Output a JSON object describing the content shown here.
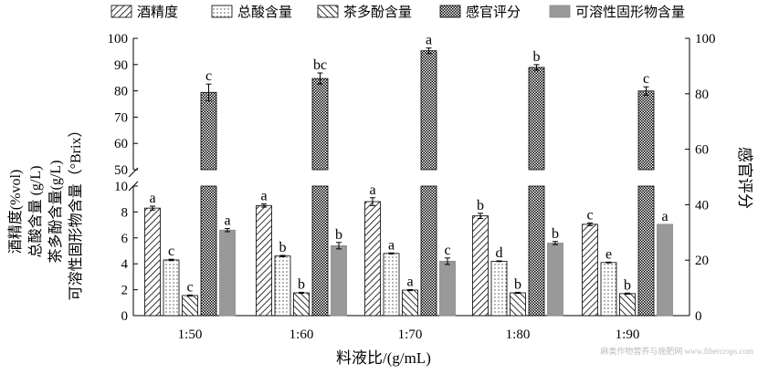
{
  "chart_data": {
    "type": "bar",
    "xlabel": "料液比/(g/mL)",
    "ylabel_left": [
      "酒精度(%vol)",
      "总酸含量 (g/L)",
      "茶多酚含量(g/L)",
      "可溶性固形物含量（°Brix）"
    ],
    "ylabel_right": "感官评分",
    "categories": [
      "1:50",
      "1:60",
      "1:70",
      "1:80",
      "1:90"
    ],
    "left_axis_lower": {
      "range": [
        0,
        10
      ],
      "ticks": [
        "0",
        "2",
        "4",
        "6",
        "8",
        "10"
      ]
    },
    "left_axis_upper": {
      "range": [
        50,
        100
      ],
      "ticks": [
        "50",
        "60",
        "70",
        "80",
        "90",
        "100"
      ]
    },
    "right_axis": {
      "range": [
        0,
        100
      ],
      "ticks": [
        "0",
        "20",
        "40",
        "60",
        "80",
        "100"
      ]
    },
    "legend_position": "top",
    "series": [
      {
        "name": "酒精度",
        "axis": "left",
        "pattern": "hatch-fwd",
        "values": [
          8.3,
          8.5,
          8.8,
          7.7,
          7.05
        ],
        "errors": [
          0.15,
          0.12,
          0.3,
          0.2,
          0.1
        ],
        "letters": [
          "a",
          "a",
          "a",
          "b",
          "c"
        ]
      },
      {
        "name": "总酸含量",
        "axis": "left",
        "pattern": "dots",
        "values": [
          4.3,
          4.6,
          4.8,
          4.2,
          4.1
        ],
        "errors": [
          0.05,
          0.05,
          0.04,
          0.03,
          0.03
        ],
        "letters": [
          "c",
          "b",
          "a",
          "d",
          "e"
        ]
      },
      {
        "name": "茶多酚含量",
        "axis": "left",
        "pattern": "hatch-back",
        "values": [
          1.55,
          1.76,
          1.97,
          1.76,
          1.7
        ],
        "errors": [
          0.04,
          0.04,
          0.04,
          0.04,
          0.04
        ],
        "letters": [
          "c",
          "b",
          "a",
          "b",
          "b"
        ]
      },
      {
        "name": "感官评分",
        "axis": "right",
        "pattern": "checker",
        "values": [
          80.5,
          85.5,
          95.5,
          89.5,
          81
        ],
        "errors": [
          3,
          2,
          1,
          1,
          1.5
        ],
        "letters": [
          "c",
          "bc",
          "a",
          "b",
          "c"
        ]
      },
      {
        "name": "可溶性固形物含量",
        "axis": "left",
        "pattern": "gray",
        "values": [
          6.6,
          5.4,
          4.2,
          5.6,
          7.05
        ],
        "errors": [
          0.12,
          0.25,
          0.25,
          0.12,
          0.0
        ],
        "letters": [
          "a",
          "b",
          "c",
          "b",
          "a"
        ]
      }
    ]
  },
  "watermark": "麻类作物营养与施肥网 www.fibercrops.com"
}
